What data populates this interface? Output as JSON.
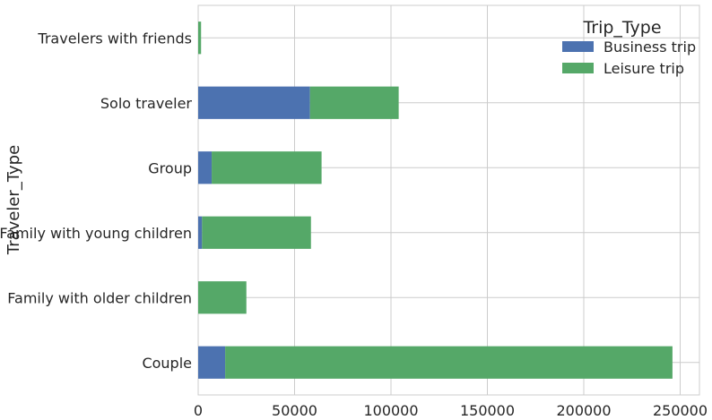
{
  "chart_data": {
    "type": "bar",
    "orientation": "horizontal",
    "stacked": true,
    "categories": [
      "Couple",
      "Family with older children",
      "Family with young children",
      "Group",
      "Solo traveler",
      "Travelers with friends"
    ],
    "series": [
      {
        "name": "Business trip",
        "color": "#4c72b0",
        "values": [
          14000,
          0,
          2000,
          7000,
          58000,
          0
        ]
      },
      {
        "name": "Leisure trip",
        "color": "#55a868",
        "values": [
          232000,
          25000,
          56500,
          57000,
          46000,
          1500
        ]
      }
    ],
    "xlim": [
      0,
      260000
    ],
    "xticks": [
      0,
      50000,
      100000,
      150000,
      200000,
      250000
    ],
    "xtick_labels": [
      "0",
      "50000",
      "100000",
      "150000",
      "200000",
      "250000"
    ],
    "xlabel": "",
    "ylabel": "Traveler_Type",
    "grid": true,
    "legend": {
      "title": "Trip_Type",
      "placement": "top-right"
    }
  }
}
